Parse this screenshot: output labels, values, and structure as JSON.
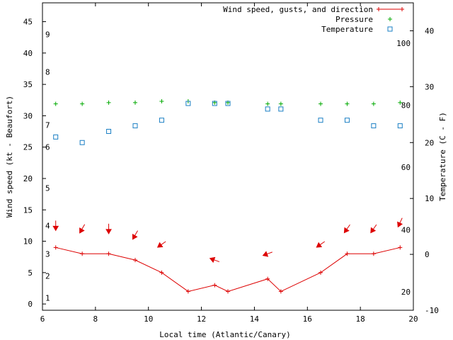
{
  "chart_data": {
    "type": "line",
    "xlabel": "Local time (Atlantic/Canary)",
    "ylabel": "Wind speed (kt - Beaufort)",
    "y2label": "Temperature (C - F)",
    "xlim": [
      6,
      20
    ],
    "ylim": [
      -1,
      48
    ],
    "y2lim": [
      -10,
      45
    ],
    "x_ticks": [
      6,
      8,
      10,
      12,
      14,
      16,
      18,
      20
    ],
    "y_ticks": [
      0,
      5,
      10,
      15,
      20,
      25,
      30,
      35,
      40,
      45
    ],
    "y2_ticks": [
      -10,
      0,
      10,
      20,
      30,
      40
    ],
    "beaufort_labels": [
      {
        "label": "1",
        "kt": 1
      },
      {
        "label": "2",
        "kt": 4.5
      },
      {
        "label": "3",
        "kt": 8
      },
      {
        "label": "4",
        "kt": 12.5
      },
      {
        "label": "5",
        "kt": 18.5
      },
      {
        "label": "6",
        "kt": 25
      },
      {
        "label": "7",
        "kt": 28.5
      },
      {
        "label": "8",
        "kt": 37
      },
      {
        "label": "9",
        "kt": 43
      }
    ],
    "fahrenheit_labels": [
      {
        "label": "20",
        "c": -6.7
      },
      {
        "label": "40",
        "c": 4.4
      },
      {
        "label": "60",
        "c": 15.6
      },
      {
        "label": "80",
        "c": 26.7
      },
      {
        "label": "100",
        "c": 37.8
      }
    ],
    "legend_position": "top-right",
    "series": [
      {
        "name": "Wind speed, gusts, and direction",
        "color": "#dd0000",
        "x": [
          6.5,
          7.5,
          8.5,
          9.5,
          10.5,
          11.5,
          12.5,
          13,
          14.5,
          15,
          16.5,
          17.5,
          18.5,
          19.5
        ],
        "y": [
          9,
          8,
          8,
          7,
          5,
          2,
          3,
          2,
          4,
          2,
          5,
          8,
          8,
          9
        ],
        "direction_arrows": [
          {
            "x": 6.5,
            "y": 12.5,
            "toward_deg": 180
          },
          {
            "x": 7.5,
            "y": 12,
            "toward_deg": 210
          },
          {
            "x": 8.5,
            "y": 12,
            "toward_deg": 180
          },
          {
            "x": 9.5,
            "y": 11,
            "toward_deg": 210
          },
          {
            "x": 10.5,
            "y": 9.5,
            "toward_deg": 235
          },
          {
            "x": 12.5,
            "y": 7,
            "toward_deg": 290
          },
          {
            "x": 14.5,
            "y": 8,
            "toward_deg": 250
          },
          {
            "x": 16.5,
            "y": 9.5,
            "toward_deg": 235
          },
          {
            "x": 17.5,
            "y": 12,
            "toward_deg": 215
          },
          {
            "x": 18.5,
            "y": 12,
            "toward_deg": 215
          },
          {
            "x": 19.5,
            "y": 13,
            "toward_deg": 205
          }
        ]
      },
      {
        "name": "Pressure",
        "color": "#00aa00",
        "x": [
          6.5,
          7.5,
          8.5,
          9.5,
          10.5,
          11.5,
          12.5,
          13,
          14.5,
          15,
          16.5,
          17.5,
          18.5,
          19.5
        ],
        "y": [
          31.9,
          31.9,
          32.1,
          32.1,
          32.3,
          32.3,
          32.1,
          32.1,
          31.9,
          31.9,
          31.9,
          31.9,
          31.9,
          32.1
        ]
      },
      {
        "name": "Temperature",
        "color": "#1a7fc4",
        "axis": "right",
        "x": [
          6.5,
          7.5,
          8.5,
          9.5,
          10.5,
          11.5,
          12.5,
          13,
          14.5,
          15,
          16.5,
          17.5,
          18.5,
          19.5
        ],
        "y": [
          21,
          20,
          22,
          23,
          24,
          27,
          27,
          27,
          26,
          26,
          24,
          24,
          23,
          23
        ]
      }
    ]
  }
}
